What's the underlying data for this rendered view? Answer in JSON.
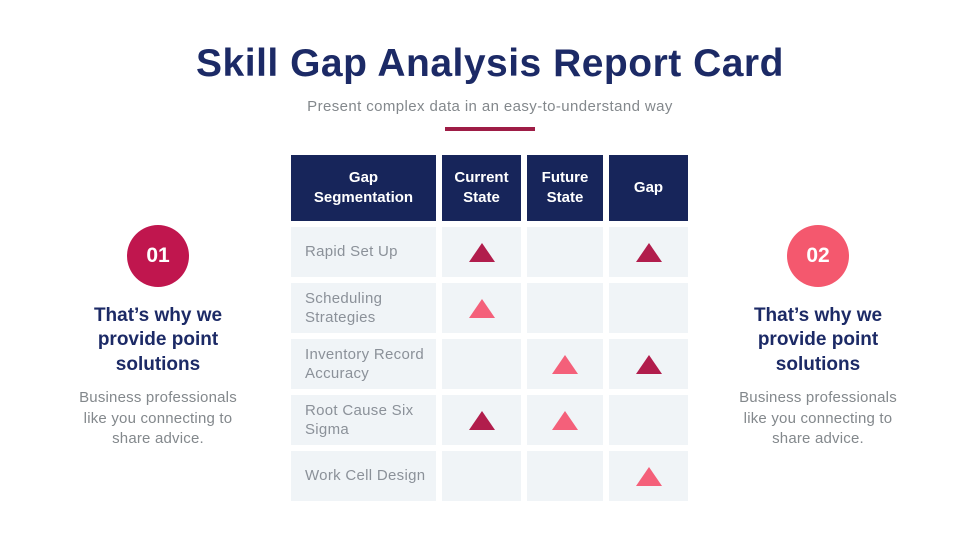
{
  "header": {
    "title": "Skill Gap Analysis Report Card",
    "subtitle": "Present complex data in an easy-to-understand way"
  },
  "colors": {
    "title_navy": "#1c2a66",
    "table_header_bg": "#17255a",
    "divider_crimson": "#9e1d46",
    "cell_bg": "#f0f4f7",
    "row_label_gray": "#8b9199",
    "muted_text": "#83888c",
    "dark_triangle": "#b11d4c",
    "light_triangle": "#f4607a",
    "circle_01": "#c0164e",
    "circle_02": "#f4586e"
  },
  "table": {
    "columns": [
      "Gap Segmentation",
      "Current State",
      "Future State",
      "Gap"
    ],
    "rows": [
      {
        "label": "Rapid Set Up",
        "current_state": "dark",
        "future_state": null,
        "gap": "dark"
      },
      {
        "label": "Scheduling Strategies",
        "current_state": "light",
        "future_state": null,
        "gap": null
      },
      {
        "label": "Inventory Record Accuracy",
        "current_state": null,
        "future_state": "light",
        "gap": "dark"
      },
      {
        "label": "Root Cause Six Sigma",
        "current_state": "dark",
        "future_state": "light",
        "gap": null
      },
      {
        "label": "Work Cell Design",
        "current_state": null,
        "future_state": null,
        "gap": "light"
      }
    ]
  },
  "callouts": [
    {
      "number": "01",
      "circle_color": "#c0164e",
      "heading": "That’s why we provide point solutions",
      "body": "Business professionals like you connecting to share advice."
    },
    {
      "number": "02",
      "circle_color": "#f4586e",
      "heading": "That’s why we provide point solutions",
      "body": "Business professionals like you connecting to share advice."
    }
  ],
  "chart_data": {
    "type": "table",
    "title": "Skill Gap Analysis Report Card",
    "subtitle": "Present complex data in an easy-to-understand way",
    "columns": [
      "Gap Segmentation",
      "Current State",
      "Future State",
      "Gap"
    ],
    "marker_legend": {
      "dark": "dark crimson triangle #b11d4c",
      "light": "pink triangle #f4607a",
      "null": "empty cell"
    },
    "rows": [
      {
        "label": "Rapid Set Up",
        "current_state": "dark",
        "future_state": null,
        "gap": "dark"
      },
      {
        "label": "Scheduling Strategies",
        "current_state": "light",
        "future_state": null,
        "gap": null
      },
      {
        "label": "Inventory Record Accuracy",
        "current_state": null,
        "future_state": "light",
        "gap": "dark"
      },
      {
        "label": "Root Cause Six Sigma",
        "current_state": "dark",
        "future_state": "light",
        "gap": null
      },
      {
        "label": "Work Cell Design",
        "current_state": null,
        "future_state": null,
        "gap": "light"
      }
    ]
  }
}
